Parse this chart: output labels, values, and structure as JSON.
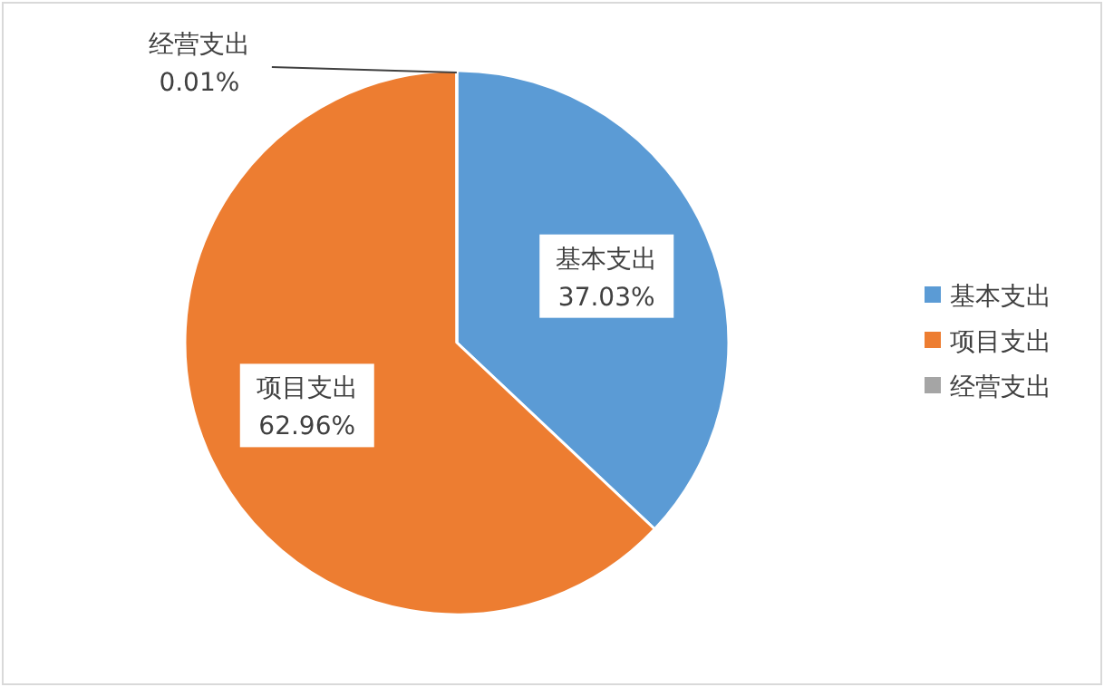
{
  "chart_data": {
    "type": "pie",
    "categories": [
      "基本支出",
      "项目支出",
      "经营支出"
    ],
    "values": [
      37.03,
      62.96,
      0.01
    ],
    "value_labels": [
      "37.03%",
      "62.96%",
      "0.01%"
    ],
    "colors": [
      "#5b9bd5",
      "#ed7d31",
      "#a5a5a5"
    ],
    "legend": "right"
  }
}
